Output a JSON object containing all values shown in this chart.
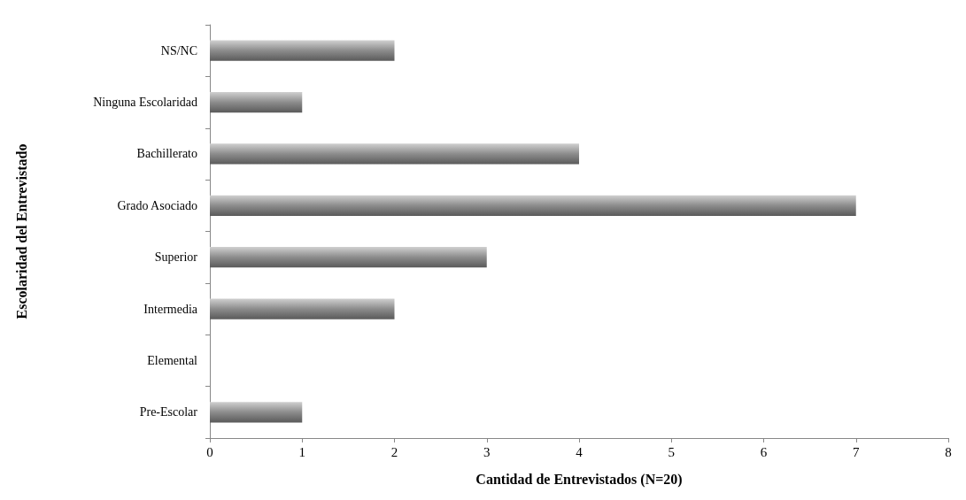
{
  "chart_data": {
    "type": "bar",
    "orientation": "horizontal",
    "xlabel": "Cantidad de Entrevistados (N=20)",
    "ylabel": "Escolaridad del Entrevistado",
    "categories": [
      "NS/NC",
      "Ninguna Escolaridad",
      "Bachillerato",
      "Grado Asociado",
      "Superior",
      "Intermedia",
      "Elemental",
      "Pre-Escolar"
    ],
    "values": [
      2,
      1,
      4,
      7,
      3,
      2,
      0,
      1
    ],
    "color": "#8c8c8c",
    "xlim": [
      0,
      8
    ],
    "xticks": [
      0,
      1,
      2,
      3,
      4,
      5,
      6,
      7,
      8
    ],
    "grid": false
  }
}
